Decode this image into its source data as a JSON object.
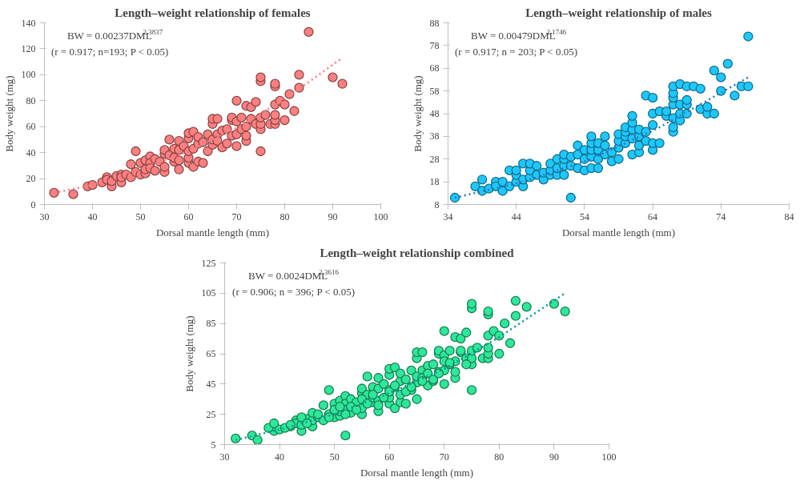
{
  "chart_data": [
    {
      "type": "scatter",
      "title": "Length–weight relationship of females",
      "xlabel": "Dorsal mantle length (mm)",
      "ylabel": "Body weight (mg)",
      "annotations": [
        "BW = 0.00237DML$^{2.3837}$",
        "(r = 0.917; n=193; P < 0.05)"
      ],
      "xlim": [
        30,
        100
      ],
      "xticks": [
        30,
        40,
        50,
        60,
        70,
        80,
        90,
        100
      ],
      "ylim": [
        0,
        140
      ],
      "yticks": [
        0,
        20,
        40,
        60,
        80,
        100,
        120,
        140
      ],
      "grid": false,
      "series": [
        {
          "type": "scatter",
          "marker": "circle",
          "color": "#ff8080",
          "x": [
            32,
            36,
            39,
            40,
            42,
            43,
            43,
            44,
            44,
            45,
            46,
            46,
            46,
            47,
            48,
            48,
            49,
            49,
            50,
            50,
            51,
            51,
            51,
            52,
            52,
            52,
            53,
            53,
            54,
            55,
            55,
            55,
            55,
            56,
            56,
            57,
            57,
            57,
            58,
            58,
            58,
            58,
            59,
            60,
            60,
            60,
            60,
            60,
            61,
            61,
            61,
            62,
            62,
            62,
            63,
            63,
            64,
            64,
            65,
            65,
            65,
            65,
            66,
            66,
            66,
            67,
            67,
            68,
            68,
            69,
            69,
            69,
            70,
            70,
            70,
            70,
            71,
            71,
            72,
            72,
            72,
            72,
            73,
            73,
            74,
            74,
            75,
            75,
            75,
            75,
            75,
            75,
            76,
            77,
            78,
            78,
            78,
            78,
            78,
            78,
            79,
            80,
            80,
            81,
            82,
            83,
            83,
            85,
            90,
            92
          ],
          "values": [
            9,
            8,
            14,
            15,
            17,
            21,
            19,
            14,
            18,
            22,
            17,
            23,
            21,
            23,
            21,
            31,
            41,
            25,
            23,
            32,
            24,
            27,
            34,
            37,
            32,
            28,
            26,
            35,
            33,
            25,
            29,
            39,
            42,
            50,
            38,
            33,
            43,
            36,
            27,
            34,
            49,
            42,
            45,
            32,
            36,
            41,
            51,
            55,
            29,
            43,
            56,
            33,
            47,
            52,
            32,
            48,
            41,
            54,
            46,
            50,
            62,
            66,
            54,
            66,
            49,
            44,
            57,
            47,
            58,
            53,
            65,
            67,
            45,
            54,
            64,
            80,
            58,
            67,
            49,
            53,
            60,
            76,
            66,
            75,
            62,
            79,
            41,
            58,
            62,
            67,
            95,
            98,
            69,
            62,
            62,
            65,
            69,
            77,
            91,
            93,
            80,
            65,
            77,
            85,
            72,
            90,
            100,
            133,
            98,
            93
          ]
        },
        {
          "type": "line",
          "line_style": "dotted",
          "color": "#ff7c80",
          "x": [
            32,
            40,
            50,
            60,
            70,
            80,
            92
          ],
          "values": [
            9,
            15,
            27,
            41,
            59,
            81,
            113
          ]
        }
      ]
    },
    {
      "type": "scatter",
      "title": "Length–weight relationship of males",
      "xlabel": "Dorsal mantle length (mm)",
      "ylabel": "Body weight (mg)",
      "annotations": [
        "BW = 0.00479DML$^{2.1746}$",
        "(r = 0.917; n = 203; P < 0.05)"
      ],
      "xlim": [
        34,
        84
      ],
      "xticks": [
        34,
        44,
        54,
        64,
        74,
        84
      ],
      "ylim": [
        8,
        88
      ],
      "yticks": [
        8,
        18,
        28,
        38,
        48,
        58,
        68,
        78,
        88
      ],
      "grid": false,
      "series": [
        {
          "type": "scatter",
          "marker": "circle",
          "color": "#1ec8ff",
          "x": [
            35,
            38,
            39,
            39,
            40,
            41,
            41,
            42,
            42,
            43,
            43,
            44,
            44,
            44,
            45,
            45,
            45,
            46,
            46,
            46,
            47,
            47,
            48,
            48,
            49,
            49,
            49,
            50,
            50,
            50,
            51,
            51,
            51,
            51,
            52,
            52,
            52,
            53,
            53,
            53,
            54,
            54,
            54,
            55,
            55,
            55,
            55,
            55,
            56,
            56,
            56,
            56,
            57,
            57,
            57,
            58,
            58,
            59,
            59,
            59,
            59,
            60,
            60,
            60,
            60,
            61,
            61,
            61,
            61,
            61,
            62,
            62,
            62,
            62,
            63,
            63,
            63,
            64,
            64,
            64,
            64,
            64,
            65,
            65,
            66,
            66,
            67,
            67,
            67,
            67,
            67,
            67,
            67,
            68,
            68,
            68,
            68,
            69,
            69,
            69,
            69,
            70,
            71,
            71,
            72,
            72,
            73,
            73,
            74,
            74,
            75,
            76,
            77,
            78,
            78
          ],
          "values": [
            11,
            16,
            19,
            14,
            15,
            18,
            16,
            18,
            14,
            16,
            23,
            18,
            21,
            23,
            16,
            19,
            26,
            20,
            23,
            26,
            21,
            25,
            19,
            22,
            21,
            23,
            26,
            21,
            24,
            28,
            21,
            25,
            28,
            30,
            11,
            25,
            29,
            24,
            30,
            34,
            23,
            28,
            32,
            24,
            29,
            32,
            35,
            38,
            24,
            28,
            32,
            35,
            30,
            34,
            38,
            27,
            31,
            28,
            33,
            36,
            39,
            35,
            38,
            40,
            42,
            30,
            37,
            41,
            44,
            47,
            31,
            34,
            38,
            41,
            36,
            40,
            56,
            32,
            35,
            43,
            48,
            55,
            35,
            49,
            47,
            49,
            40,
            42,
            46,
            52,
            55,
            57,
            60,
            45,
            48,
            52,
            61,
            48,
            52,
            54,
            60,
            60,
            50,
            59,
            48,
            51,
            48,
            67,
            58,
            64,
            70,
            56,
            60,
            60,
            82
          ]
        },
        {
          "type": "line",
          "line_style": "dotted",
          "color": "#2e75b6",
          "x": [
            35,
            45,
            55,
            65,
            78
          ],
          "values": [
            11,
            18,
            28,
            42,
            64
          ]
        }
      ]
    },
    {
      "type": "scatter",
      "title": "Length–weight relationship combined",
      "xlabel": "Dorsal mantle length (mm)",
      "ylabel": "Body weight (mg)",
      "annotations": [
        "BW = 0.0024DML$^{2.3616}$",
        "(r = 0.906; n = 396; P < 0.05)"
      ],
      "xlim": [
        30,
        100
      ],
      "xticks": [
        30,
        40,
        50,
        60,
        70,
        80,
        90,
        100
      ],
      "ylim": [
        5,
        125
      ],
      "yticks": [
        5,
        25,
        45,
        65,
        85,
        105,
        125
      ],
      "grid": false,
      "series": [
        {
          "type": "scatter",
          "marker": "circle",
          "color": "#2ee89a",
          "x": [
            32,
            35,
            36,
            39,
            40,
            42,
            43,
            43,
            44,
            44,
            45,
            46,
            46,
            47,
            48,
            48,
            49,
            49,
            50,
            50,
            51,
            51,
            51,
            52,
            52,
            52,
            53,
            53,
            54,
            55,
            55,
            55,
            55,
            56,
            56,
            57,
            57,
            57,
            58,
            58,
            58,
            58,
            59,
            60,
            60,
            60,
            60,
            60,
            61,
            61,
            61,
            62,
            62,
            62,
            63,
            63,
            64,
            64,
            65,
            65,
            65,
            65,
            66,
            66,
            66,
            67,
            67,
            68,
            68,
            69,
            69,
            69,
            70,
            70,
            70,
            70,
            71,
            71,
            72,
            72,
            72,
            72,
            73,
            73,
            74,
            74,
            75,
            75,
            75,
            75,
            75,
            75,
            76,
            77,
            78,
            78,
            78,
            78,
            78,
            78,
            79,
            80,
            80,
            81,
            82,
            83,
            83,
            85,
            90,
            92,
            38,
            39,
            41,
            42,
            44,
            45,
            46,
            47,
            49,
            50,
            51,
            52,
            52,
            53,
            54,
            55,
            56,
            57,
            58,
            59,
            60,
            61,
            62,
            63,
            64,
            65,
            66,
            67,
            68,
            69,
            70,
            71,
            73,
            74
          ],
          "values": [
            9,
            11,
            8,
            14,
            15,
            17,
            21,
            19,
            14,
            18,
            22,
            17,
            21,
            23,
            21,
            31,
            41,
            25,
            23,
            32,
            24,
            27,
            34,
            37,
            32,
            28,
            26,
            35,
            33,
            25,
            29,
            39,
            42,
            50,
            38,
            33,
            43,
            36,
            27,
            34,
            49,
            42,
            45,
            32,
            36,
            41,
            51,
            55,
            29,
            43,
            56,
            33,
            47,
            52,
            32,
            48,
            41,
            54,
            46,
            50,
            62,
            66,
            54,
            66,
            49,
            44,
            57,
            47,
            58,
            53,
            65,
            67,
            45,
            54,
            64,
            80,
            58,
            67,
            49,
            53,
            60,
            76,
            66,
            75,
            62,
            79,
            41,
            58,
            62,
            67,
            95,
            98,
            69,
            62,
            62,
            65,
            69,
            77,
            91,
            93,
            80,
            65,
            77,
            85,
            72,
            90,
            100,
            96,
            98,
            93,
            16,
            19,
            16,
            18,
            23,
            19,
            26,
            25,
            23,
            28,
            30,
            11,
            25,
            30,
            28,
            35,
            32,
            38,
            31,
            36,
            40,
            44,
            38,
            40,
            43,
            35,
            47,
            52,
            48,
            52,
            60,
            59,
            67,
            58
          ]
        },
        {
          "type": "line",
          "line_style": "dotted",
          "color": "#009999",
          "x": [
            32,
            40,
            50,
            60,
            70,
            80,
            92
          ],
          "values": [
            8,
            15,
            25,
            39,
            55,
            76,
            105
          ]
        }
      ]
    }
  ]
}
